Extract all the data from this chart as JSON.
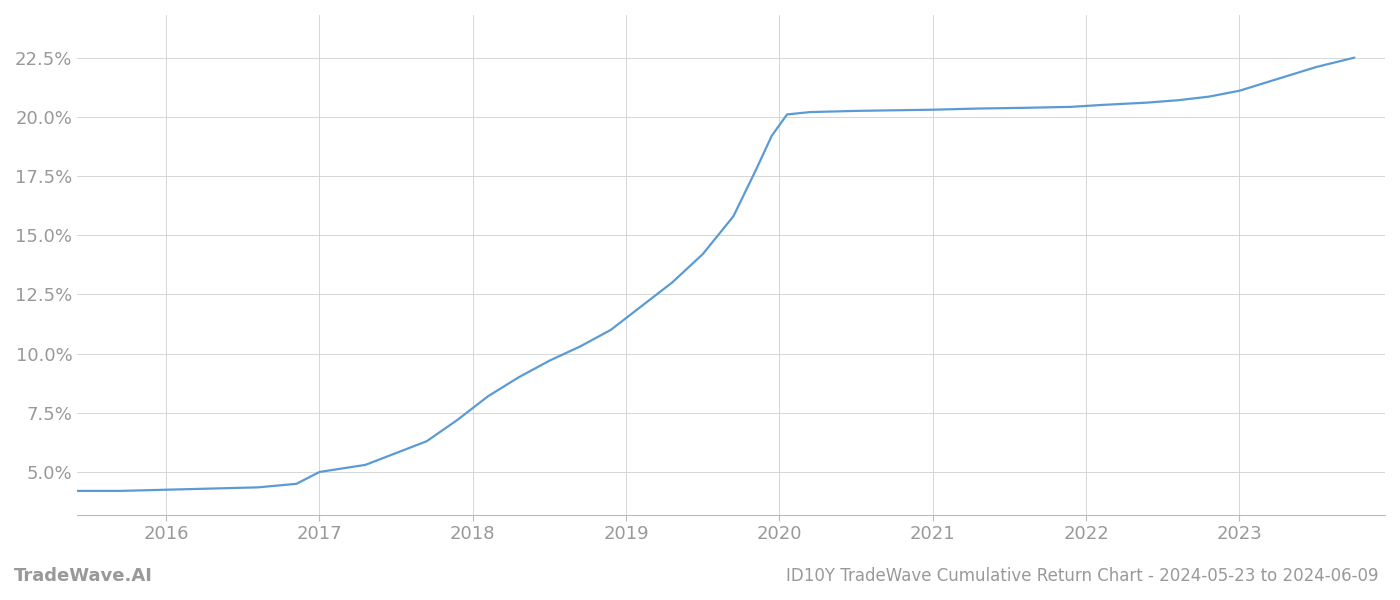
{
  "title": "ID10Y TradeWave Cumulative Return Chart - 2024-05-23 to 2024-06-09",
  "watermark": "TradeWave.AI",
  "line_color": "#5b9bd5",
  "background_color": "#ffffff",
  "grid_color": "#d0d0d0",
  "x_values": [
    2015.42,
    2015.7,
    2016.0,
    2016.3,
    2016.6,
    2016.85,
    2017.0,
    2017.15,
    2017.3,
    2017.5,
    2017.7,
    2017.9,
    2018.1,
    2018.3,
    2018.5,
    2018.7,
    2018.9,
    2019.1,
    2019.3,
    2019.5,
    2019.7,
    2019.85,
    2019.95,
    2020.05,
    2020.2,
    2020.5,
    2020.8,
    2021.0,
    2021.3,
    2021.6,
    2021.9,
    2022.1,
    2022.4,
    2022.6,
    2022.8,
    2023.0,
    2023.2,
    2023.5,
    2023.75
  ],
  "y_values": [
    4.2,
    4.2,
    4.25,
    4.3,
    4.35,
    4.5,
    5.0,
    5.15,
    5.3,
    5.8,
    6.3,
    7.2,
    8.2,
    9.0,
    9.7,
    10.3,
    11.0,
    12.0,
    13.0,
    14.2,
    15.8,
    17.8,
    19.2,
    20.1,
    20.2,
    20.25,
    20.28,
    20.3,
    20.35,
    20.38,
    20.42,
    20.5,
    20.6,
    20.7,
    20.85,
    21.1,
    21.5,
    22.1,
    22.5
  ],
  "xlim": [
    2015.42,
    2023.95
  ],
  "ylim": [
    3.2,
    24.3
  ],
  "yticks": [
    5.0,
    7.5,
    10.0,
    12.5,
    15.0,
    17.5,
    20.0,
    22.5
  ],
  "xticks": [
    2016,
    2017,
    2018,
    2019,
    2020,
    2021,
    2022,
    2023
  ],
  "tick_color": "#999999",
  "label_fontsize": 13,
  "watermark_fontsize": 13,
  "title_fontsize": 12,
  "line_width": 1.6
}
